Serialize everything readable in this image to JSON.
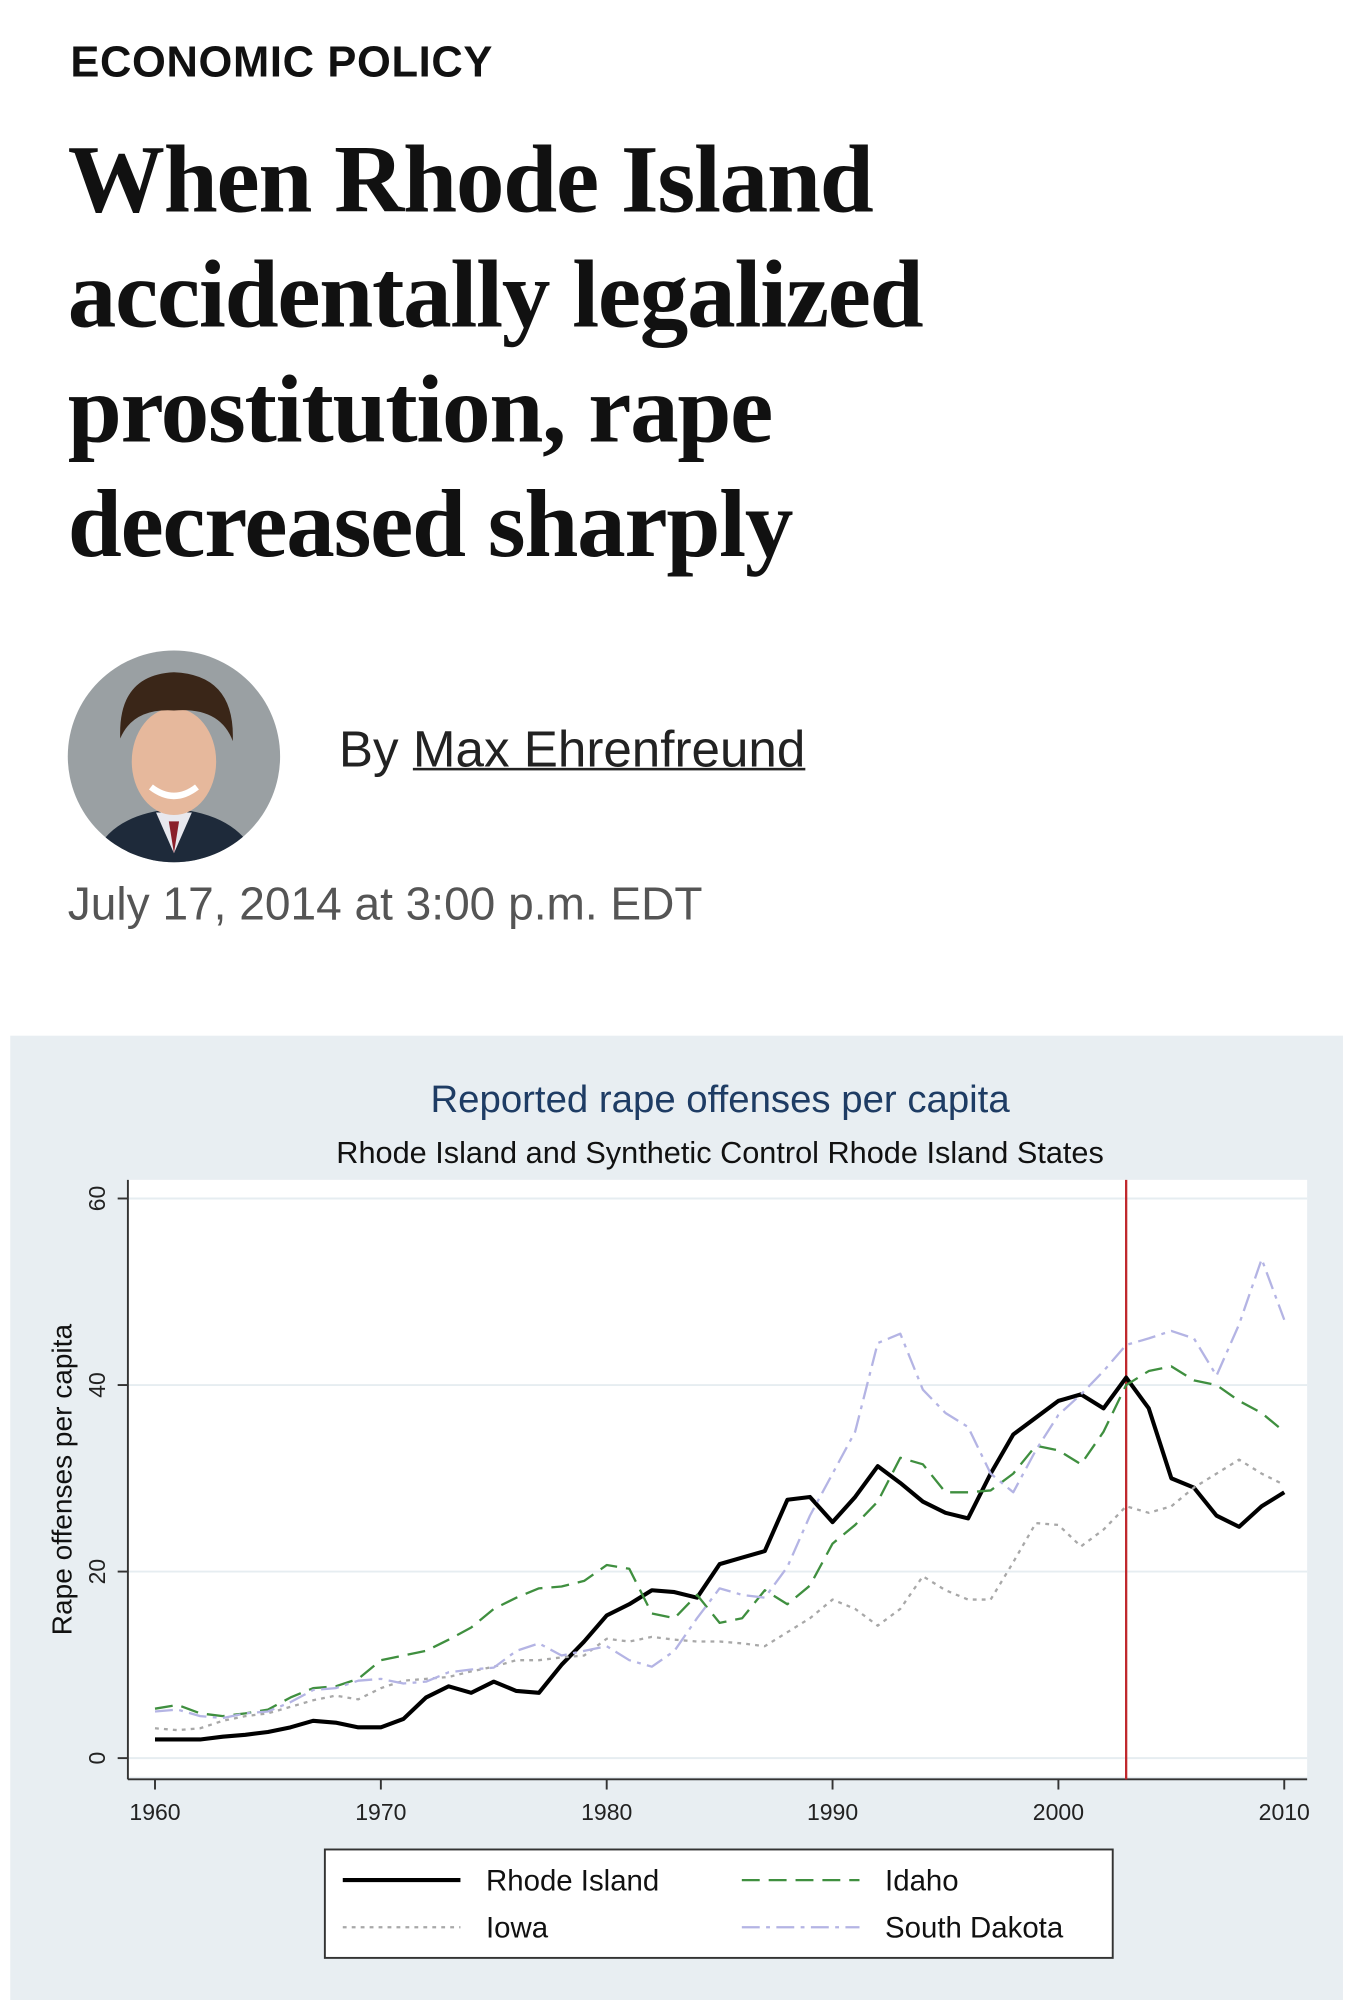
{
  "header": {
    "section": "ECONOMIC POLICY",
    "title": "When Rhode Island accidentally legalized prostitution, rape decreased sharply",
    "byline_prefix": "By",
    "author": "Max Ehrenfreund",
    "date": "July 17, 2014 at 3:00 p.m. EDT"
  },
  "chart_data": {
    "type": "line",
    "title": "Reported rape offenses per capita",
    "subtitle": "Rhode Island and Synthetic Control Rhode Island States",
    "y_label": "Rape offenses per capita",
    "x": [
      1960,
      1961,
      1962,
      1963,
      1964,
      1965,
      1966,
      1967,
      1968,
      1969,
      1970,
      1971,
      1972,
      1973,
      1974,
      1975,
      1976,
      1977,
      1978,
      1979,
      1980,
      1981,
      1982,
      1983,
      1984,
      1985,
      1986,
      1987,
      1988,
      1989,
      1990,
      1991,
      1992,
      1993,
      1994,
      1995,
      1996,
      1997,
      1998,
      1999,
      2000,
      2001,
      2002,
      2003,
      2004,
      2005,
      2006,
      2007,
      2008,
      2009,
      2010
    ],
    "series": [
      {
        "name": "Rhode Island",
        "color": "#000000",
        "dash": "solid",
        "values": [
          2,
          2,
          2,
          2.3,
          2.5,
          2.8,
          3.3,
          4,
          3.8,
          3.3,
          3.3,
          4.2,
          6.5,
          7.7,
          7,
          8.2,
          7.2,
          7,
          10,
          12.5,
          15.3,
          16.5,
          18,
          17.8,
          17.2,
          20.8,
          21.5,
          22.2,
          27.7,
          28,
          25.3,
          28,
          31.3,
          29.5,
          27.5,
          26.3,
          25.7,
          30.5,
          34.7,
          36.5,
          38.3,
          39,
          37.5,
          40.8,
          37.5,
          30,
          29,
          26,
          24.8,
          27,
          28.5
        ]
      },
      {
        "name": "Idaho",
        "color": "#3f8f3f",
        "dash": "dashed",
        "values": [
          5.3,
          5.7,
          4.8,
          4.5,
          4.8,
          5.2,
          6.5,
          7.5,
          7.7,
          8.5,
          10.5,
          11,
          11.5,
          12.7,
          14,
          16,
          17.2,
          18.2,
          18.4,
          19,
          20.7,
          20.3,
          15.5,
          15,
          17.5,
          14.5,
          15,
          18,
          16.5,
          18.5,
          23,
          25,
          27.5,
          32.2,
          31.5,
          28.5,
          28.5,
          28.7,
          30.5,
          33.5,
          33,
          31.5,
          35,
          40,
          41.5,
          42,
          40.5,
          40,
          38.3,
          37,
          35
        ]
      },
      {
        "name": "Iowa",
        "color": "#a8a8a8",
        "dash": "dotted",
        "values": [
          3.2,
          3,
          3.2,
          4,
          4.5,
          4.8,
          5.5,
          6.2,
          6.7,
          6.3,
          7.5,
          8.3,
          8.5,
          8.7,
          9.3,
          9.8,
          10.5,
          10.5,
          10.8,
          11,
          12.8,
          12.5,
          13,
          12.7,
          12.5,
          12.5,
          12.3,
          12,
          13.5,
          15,
          17,
          16,
          14.2,
          16,
          19.5,
          18,
          17,
          17,
          21,
          25.2,
          25,
          22.7,
          24.5,
          27,
          26.3,
          27,
          29,
          30.5,
          32,
          30.5,
          29.3
        ]
      },
      {
        "name": "South Dakota",
        "color": "#b4b4e4",
        "dash": "dashdot",
        "values": [
          5,
          5.2,
          4.5,
          4.3,
          4.8,
          5,
          6,
          7.3,
          7.5,
          8.3,
          8.5,
          8,
          8.2,
          9.2,
          9.5,
          9.7,
          11.5,
          12.3,
          11,
          11.5,
          12,
          10.5,
          9.8,
          11.5,
          15,
          18.2,
          17.5,
          17.2,
          20.5,
          26,
          30.5,
          35,
          44.5,
          45.5,
          39.5,
          37,
          35.5,
          30.5,
          28.5,
          33,
          36.8,
          39,
          41.5,
          44.3,
          45,
          45.8,
          45,
          41,
          46.5,
          53.5,
          47
        ]
      }
    ],
    "xlim": [
      1958.8,
      2010.9
    ],
    "ylim": [
      -2,
      62
    ],
    "xticks": [
      1960,
      1970,
      1980,
      1990,
      2000,
      2010
    ],
    "yticks": [
      0,
      20,
      40,
      60
    ],
    "grid": true,
    "vline": {
      "x": 2003,
      "color": "#c0282d"
    },
    "legend": "bottom"
  }
}
